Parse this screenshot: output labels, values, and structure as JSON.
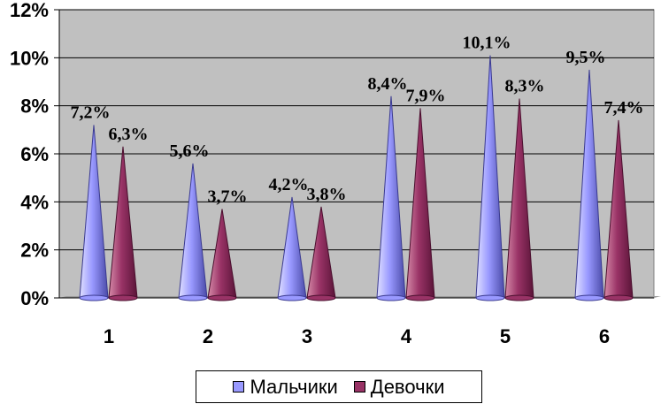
{
  "chart_data": {
    "type": "bar",
    "shape": "cone",
    "categories": [
      "1",
      "2",
      "3",
      "4",
      "5",
      "6"
    ],
    "series": [
      {
        "name": "Мальчики",
        "values": [
          7.2,
          5.6,
          4.2,
          8.4,
          10.1,
          9.5
        ],
        "labels": [
          "7,2%",
          "5,6%",
          "4,2%",
          "8,4%",
          "10,1%",
          "9,5%"
        ],
        "color": "#9999ff"
      },
      {
        "name": "Девочки",
        "values": [
          6.3,
          3.7,
          3.8,
          7.9,
          8.3,
          7.4
        ],
        "labels": [
          "6,3%",
          "3,7%",
          "3,8%",
          "7,9%",
          "8,3%",
          "7,4%"
        ],
        "color": "#993366"
      }
    ],
    "y_ticks": [
      "0%",
      "2%",
      "4%",
      "6%",
      "8%",
      "10%",
      "12%"
    ],
    "ylim": [
      0,
      12
    ],
    "grid": true,
    "plot_background": "#c0c0c0",
    "legend_position": "bottom",
    "title": "",
    "xlabel": "",
    "ylabel": ""
  }
}
